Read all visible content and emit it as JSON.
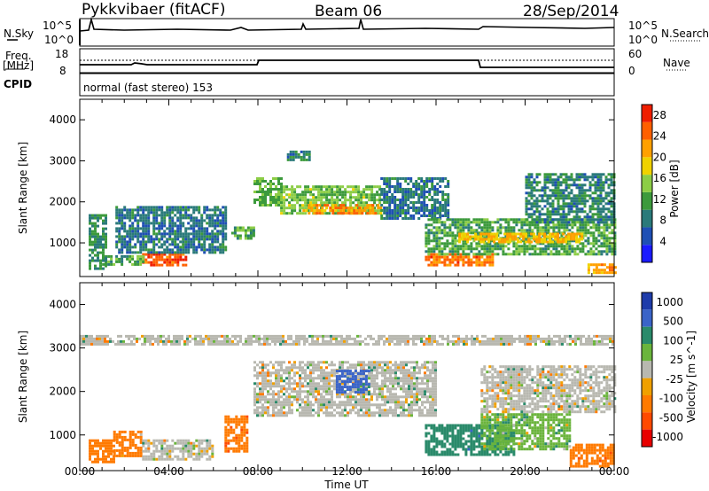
{
  "header": {
    "station": "Pykkvibaer (fitACF)",
    "beam": "Beam 06",
    "date": "28/Sep/2014"
  },
  "noise_panel": {
    "left_label": "N.Sky",
    "right_label": "N.Search",
    "ticks_left": [
      "10^5",
      "10^0"
    ],
    "ticks_right": [
      "10^5",
      "10^0"
    ]
  },
  "freq_panel": {
    "left_label": "Freq.",
    "left_unit": "[MHz]",
    "right_label": "Nave",
    "ticks_left": [
      "18",
      "8"
    ],
    "ticks_right": [
      "60",
      "0"
    ],
    "cpid_label": "CPID"
  },
  "cpid_panel": {
    "text": "normal (fast stereo) 153"
  },
  "x_axis": {
    "label": "Time UT",
    "ticks": [
      "00:00",
      "04:00",
      "08:00",
      "12:00",
      "16:00",
      "20:00",
      "00:00"
    ]
  },
  "colors": {
    "power_scale": [
      "#1a1aff",
      "#1e4fb4",
      "#2a7a7a",
      "#3c9a3c",
      "#8ccd46",
      "#f0d200",
      "#ffa000",
      "#ff6000",
      "#f01e00"
    ],
    "velocity_scale": [
      "#1e3caa",
      "#3a64c8",
      "#2a8a6a",
      "#6ab43c",
      "#b8b8b0",
      "#f0a000",
      "#ff7a00",
      "#ff4a00",
      "#e80000"
    ]
  },
  "chart_data": [
    {
      "type": "heatmap",
      "title": "Power",
      "ylabel": "Slant Range [km]",
      "xlabel": "Time UT",
      "y_ticks": [
        "1000",
        "2000",
        "3000",
        "4000"
      ],
      "ylim": [
        180,
        4500
      ],
      "xlim": [
        0,
        24
      ],
      "colorbar": {
        "label": "Power [dB]",
        "ticks": [
          "4",
          "8",
          "12",
          "16",
          "20",
          "24",
          "28"
        ],
        "range": [
          0,
          30
        ]
      },
      "regions": [
        {
          "t0": 2.8,
          "t1": 4.8,
          "r0": 450,
          "r1": 750,
          "level": 26
        },
        {
          "t0": 1.0,
          "t1": 2.8,
          "r0": 480,
          "r1": 700,
          "level": 12
        },
        {
          "t0": 0.4,
          "t1": 1.2,
          "r0": 400,
          "r1": 1700,
          "level": 10
        },
        {
          "t0": 1.6,
          "t1": 6.5,
          "r0": 750,
          "r1": 1900,
          "level": 8
        },
        {
          "t0": 6.8,
          "t1": 7.8,
          "r0": 1100,
          "r1": 1400,
          "level": 12
        },
        {
          "t0": 7.8,
          "t1": 9.0,
          "r0": 1900,
          "r1": 2600,
          "level": 13
        },
        {
          "t0": 9.0,
          "t1": 13.5,
          "r0": 1750,
          "r1": 2400,
          "level": 14
        },
        {
          "t0": 10.0,
          "t1": 13.5,
          "r0": 1700,
          "r1": 1950,
          "level": 22
        },
        {
          "t0": 13.5,
          "t1": 16.5,
          "r0": 1600,
          "r1": 2600,
          "level": 8
        },
        {
          "t0": 15.5,
          "t1": 18.5,
          "r0": 450,
          "r1": 750,
          "level": 24
        },
        {
          "t0": 15.5,
          "t1": 24.0,
          "r0": 750,
          "r1": 1600,
          "level": 12
        },
        {
          "t0": 17.0,
          "t1": 22.5,
          "r0": 1000,
          "r1": 1250,
          "level": 20
        },
        {
          "t0": 20.0,
          "t1": 24.0,
          "r0": 1500,
          "r1": 2700,
          "level": 9
        },
        {
          "t0": 22.8,
          "t1": 24.0,
          "r0": 300,
          "r1": 500,
          "level": 22
        },
        {
          "t0": 9.3,
          "t1": 10.3,
          "r0": 3050,
          "r1": 3250,
          "level": 9
        }
      ]
    },
    {
      "type": "heatmap",
      "title": "Velocity",
      "ylabel": "Slant Range [km]",
      "xlabel": "Time UT",
      "y_ticks": [
        "1000",
        "2000",
        "3000",
        "4000"
      ],
      "ylim": [
        180,
        4500
      ],
      "xlim": [
        0,
        24
      ],
      "colorbar": {
        "label": "Velocity [m s^-1]",
        "ticks": [
          "1000",
          "500",
          "100",
          "25",
          "-25",
          "-100",
          "-500",
          "-1000"
        ]
      },
      "regions": [
        {
          "t0": 0.4,
          "t1": 1.5,
          "r0": 350,
          "r1": 900,
          "vel": -300
        },
        {
          "t0": 1.5,
          "t1": 2.8,
          "r0": 500,
          "r1": 1100,
          "vel": -150
        },
        {
          "t0": 2.8,
          "t1": 6.0,
          "r0": 450,
          "r1": 900,
          "vel": 0
        },
        {
          "t0": 6.5,
          "t1": 7.5,
          "r0": 650,
          "r1": 1450,
          "vel": -500
        },
        {
          "t0": 7.8,
          "t1": 16.0,
          "r0": 1450,
          "r1": 2700,
          "vel": 10
        },
        {
          "t0": 11.5,
          "t1": 13.0,
          "r0": 2000,
          "r1": 2500,
          "vel": 600
        },
        {
          "t0": 15.5,
          "t1": 19.5,
          "r0": 550,
          "r1": 1250,
          "vel": 400
        },
        {
          "t0": 18.0,
          "t1": 22.0,
          "r0": 700,
          "r1": 1500,
          "vel": 80
        },
        {
          "t0": 18.0,
          "t1": 24.0,
          "r0": 1500,
          "r1": 2600,
          "vel": 0
        },
        {
          "t0": 22.0,
          "t1": 24.0,
          "r0": 300,
          "r1": 800,
          "vel": -400
        },
        {
          "t0": 0.0,
          "t1": 24.0,
          "r0": 3100,
          "r1": 3300,
          "vel": 0
        }
      ]
    }
  ]
}
